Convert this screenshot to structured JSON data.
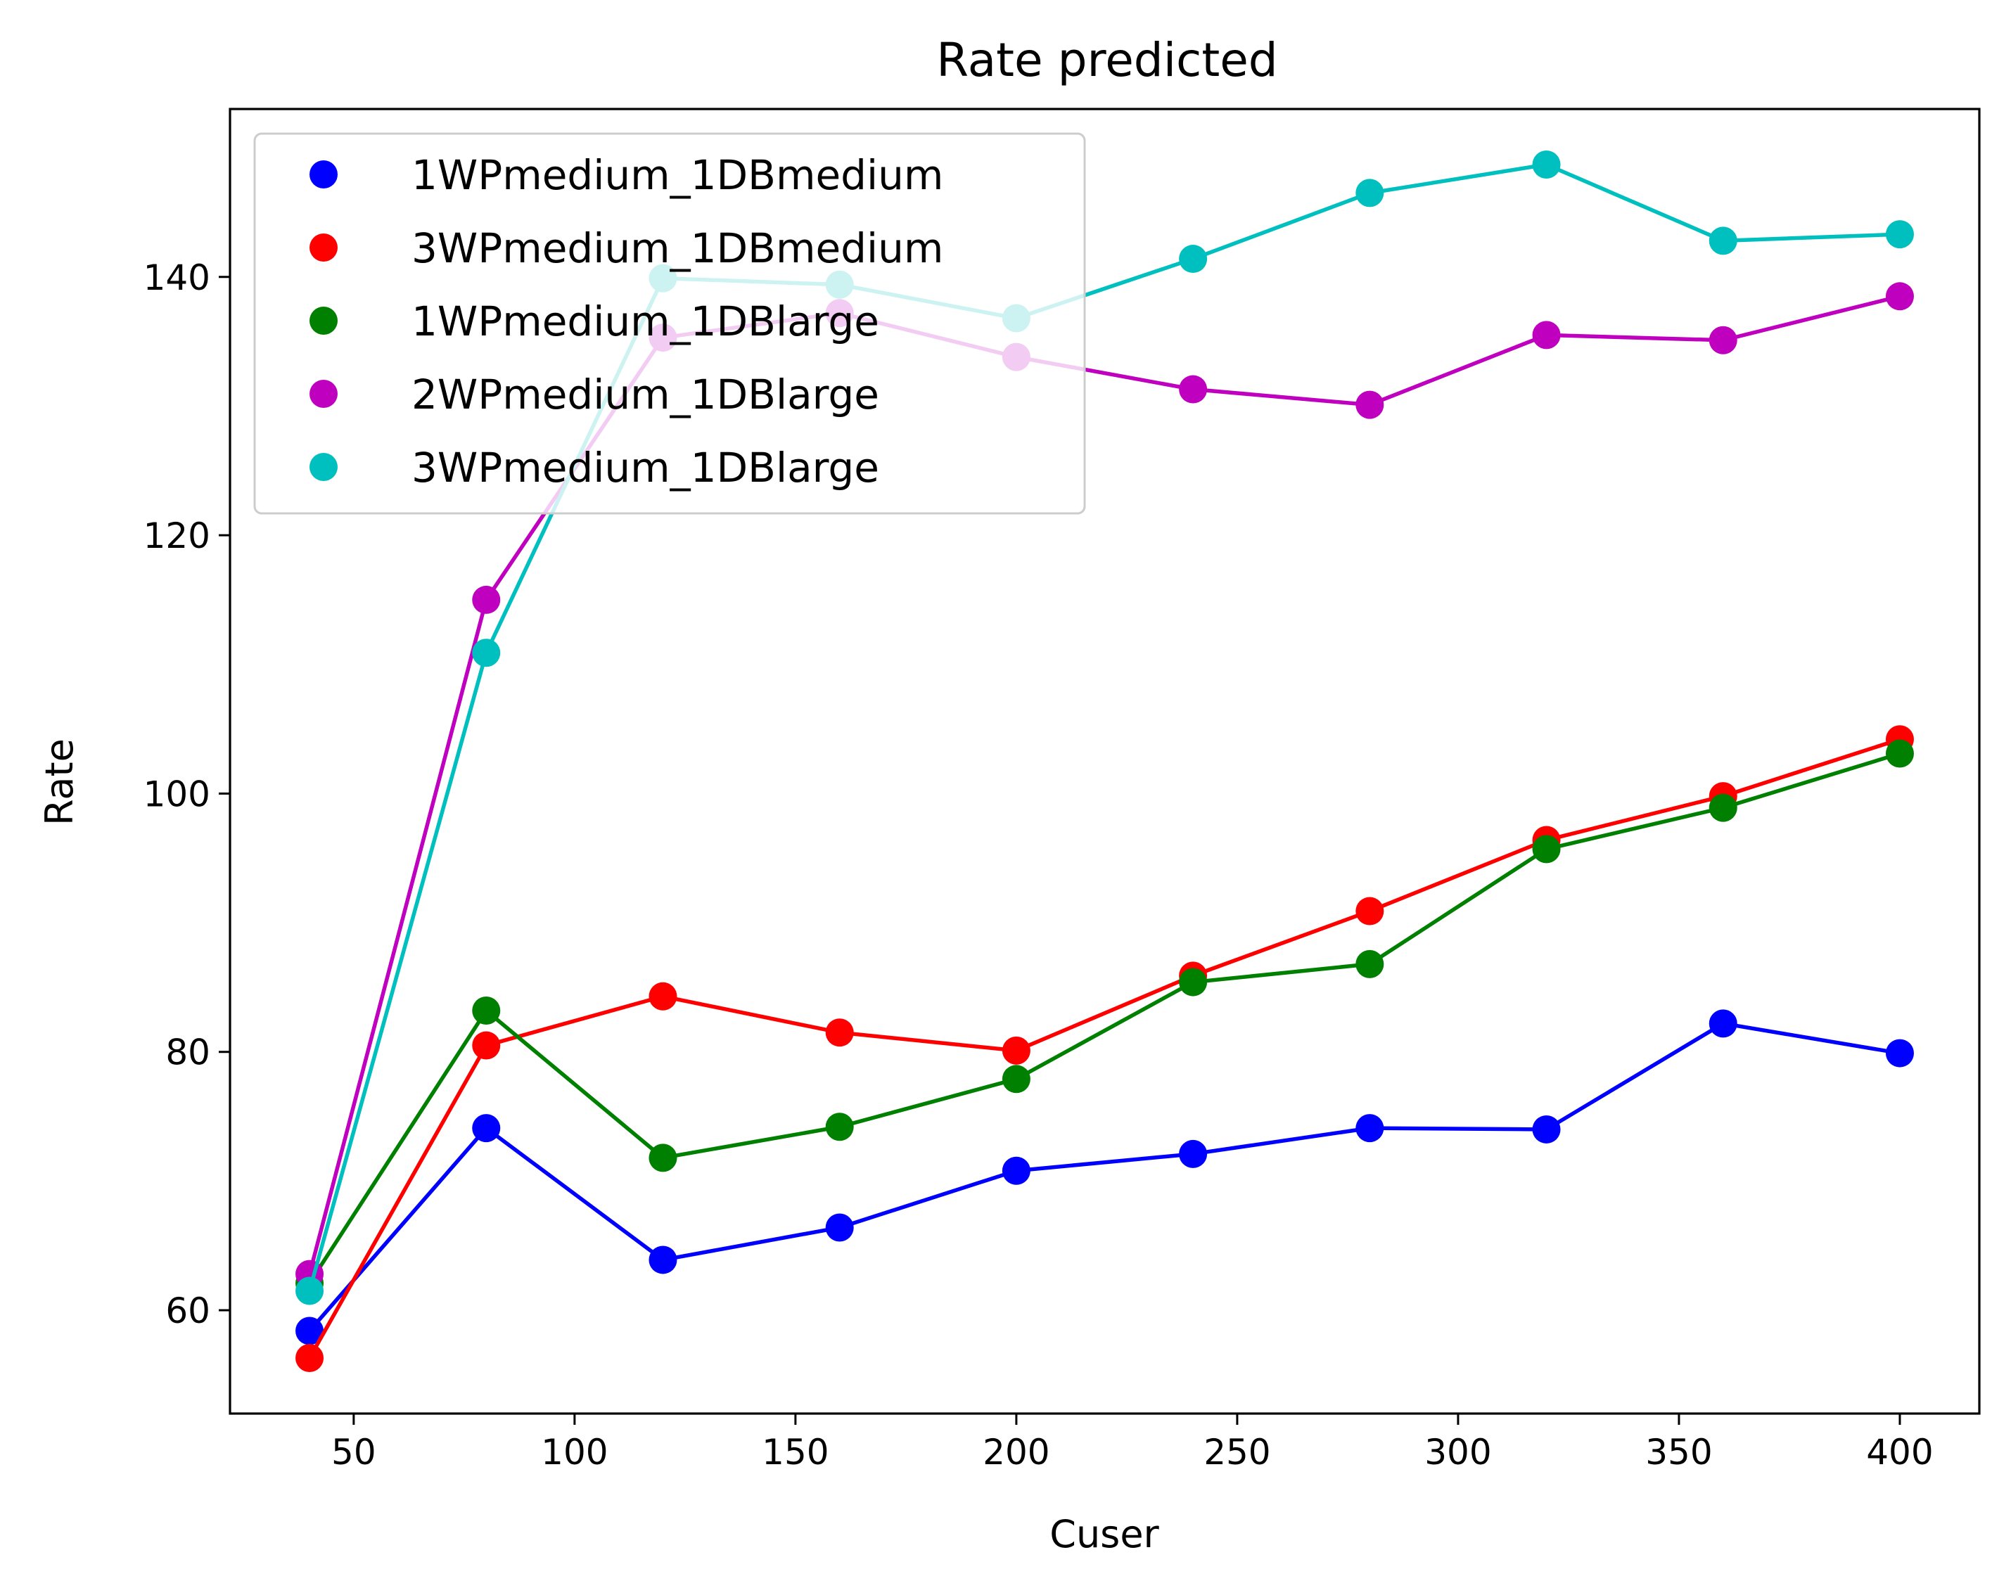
{
  "chart_data": {
    "type": "line",
    "title": "Rate predicted",
    "xlabel": "Cuser",
    "ylabel": "Rate",
    "xlim": [
      22,
      418
    ],
    "ylim": [
      52,
      153
    ],
    "xticks": [
      50,
      100,
      150,
      200,
      250,
      300,
      350,
      400
    ],
    "yticks": [
      60,
      80,
      100,
      120,
      140
    ],
    "grid": false,
    "legend_position": "top-left",
    "x": [
      40,
      80,
      120,
      160,
      200,
      240,
      280,
      320,
      360,
      400
    ],
    "series": [
      {
        "name": "1WPmedium_1DBmedium",
        "color": "#0000ff",
        "values": [
          58.4,
          74.1,
          63.9,
          66.4,
          70.8,
          72.1,
          74.1,
          74.0,
          82.2,
          79.9
        ]
      },
      {
        "name": "3WPmedium_1DBmedium",
        "color": "#ff0000",
        "values": [
          56.3,
          80.5,
          84.3,
          81.5,
          80.1,
          85.9,
          90.9,
          96.4,
          99.8,
          104.2
        ]
      },
      {
        "name": "1WPmedium_1DBlarge",
        "color": "#008000",
        "values": [
          62.1,
          83.2,
          71.8,
          74.2,
          77.9,
          85.4,
          86.8,
          95.7,
          98.9,
          103.1
        ]
      },
      {
        "name": "2WPmedium_1DBlarge",
        "color": "#bf00bf",
        "values": [
          62.8,
          115.0,
          135.3,
          137.2,
          133.8,
          131.3,
          130.1,
          135.5,
          135.1,
          138.5
        ]
      },
      {
        "name": "3WPmedium_1DBlarge",
        "color": "#00bfbf",
        "values": [
          61.5,
          110.9,
          139.9,
          139.4,
          136.8,
          141.4,
          146.5,
          148.7,
          142.8,
          143.3
        ]
      }
    ]
  }
}
